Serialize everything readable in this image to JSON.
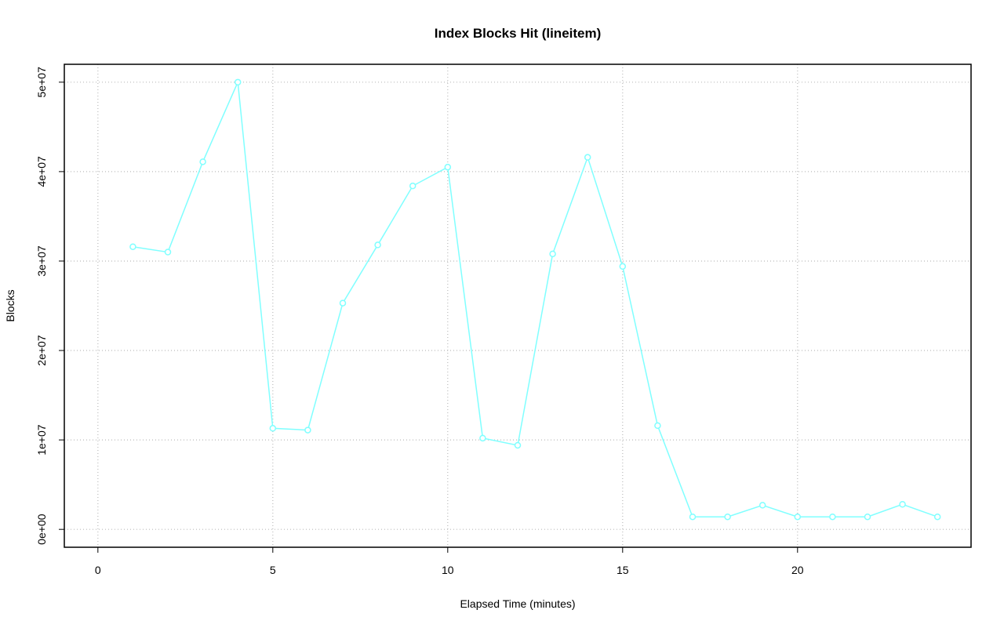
{
  "chart_data": {
    "type": "line",
    "title": "Index Blocks Hit (lineitem)",
    "x_label": "Elapsed Time (minutes)",
    "y_label": "Blocks",
    "x": [
      1,
      2,
      3,
      4,
      5,
      6,
      7,
      8,
      9,
      10,
      11,
      12,
      13,
      14,
      15,
      16,
      17,
      18,
      19,
      20,
      21,
      22,
      23,
      24
    ],
    "series": [
      {
        "color": "#80ffff",
        "values": [
          31600000,
          31000000,
          41100000,
          50000000,
          11300000,
          11100000,
          25300000,
          31800000,
          38400000,
          40500000,
          10200000,
          9400000,
          30800000,
          41600000,
          29400000,
          11600000,
          1400000,
          1400000,
          2700000,
          1400000,
          1400000,
          1400000,
          2800000,
          1400000
        ]
      }
    ],
    "xlim": [
      -0.96,
      24.96
    ],
    "xticks": [
      0,
      5,
      10,
      15,
      20
    ],
    "ylim": [
      -2000000,
      52000000
    ],
    "yticks": [
      {
        "value": 0,
        "label": "0e+00"
      },
      {
        "value": 10000000,
        "label": "1e+07"
      },
      {
        "value": 20000000,
        "label": "2e+07"
      },
      {
        "value": 30000000,
        "label": "3e+07"
      },
      {
        "value": 40000000,
        "label": "4e+07"
      },
      {
        "value": 50000000,
        "label": "5e+07"
      }
    ],
    "grid": true
  }
}
